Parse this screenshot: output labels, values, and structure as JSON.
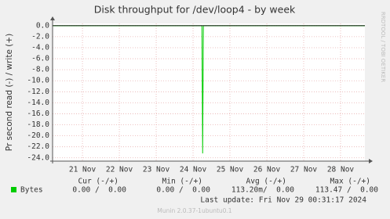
{
  "chart_data": {
    "type": "line",
    "title": "Disk throughput for /dev/loop4 - by week",
    "y_label": "Pr second read (-) / write (+)",
    "watermark": "RRDTOOL / TOBI OETIKER",
    "xlim": [
      20.19,
      28.66
    ],
    "xticks": [
      {
        "value": 21,
        "label": "21 Nov"
      },
      {
        "value": 22,
        "label": "22 Nov"
      },
      {
        "value": 23,
        "label": "23 Nov"
      },
      {
        "value": 24,
        "label": "24 Nov"
      },
      {
        "value": 25,
        "label": "25 Nov"
      },
      {
        "value": 26,
        "label": "26 Nov"
      },
      {
        "value": 27,
        "label": "27 Nov"
      },
      {
        "value": 28,
        "label": "28 Nov"
      }
    ],
    "ylim": [
      -24.6,
      0.4
    ],
    "yticks": [
      {
        "value": 0,
        "label": "0.0"
      },
      {
        "value": -2,
        "label": "-2.0"
      },
      {
        "value": -4,
        "label": "-4.0"
      },
      {
        "value": -6,
        "label": "-6.0"
      },
      {
        "value": -8,
        "label": "-8.0"
      },
      {
        "value": -10,
        "label": "-10.0"
      },
      {
        "value": -12,
        "label": "-12.0"
      },
      {
        "value": -14,
        "label": "-14.0"
      },
      {
        "value": -16,
        "label": "-16.0"
      },
      {
        "value": -18,
        "label": "-18.0"
      },
      {
        "value": -20,
        "label": "-20.0"
      },
      {
        "value": -22,
        "label": "-22.0"
      },
      {
        "value": -24,
        "label": "-24.0"
      }
    ],
    "grid": true,
    "x": [
      20.19,
      24.24,
      24.26,
      24.28,
      28.66
    ],
    "series": [
      {
        "name": "Bytes",
        "color": "#00cc00",
        "values": [
          0,
          0,
          -23.2,
          0,
          0
        ]
      }
    ],
    "summary_headers": [
      "Cur (-/+)",
      "Min (-/+)",
      "Avg (-/+)",
      "Max (-/+)"
    ],
    "summary_values": [
      "0.00 /  0.00",
      "0.00 /  0.00",
      "113.20m/  0.00",
      "113.47 /  0.00"
    ],
    "last_update": "Last update: Fri Nov 29 00:31:17 2024",
    "footer": "Munin 2.0.37-1ubuntu0.1"
  }
}
